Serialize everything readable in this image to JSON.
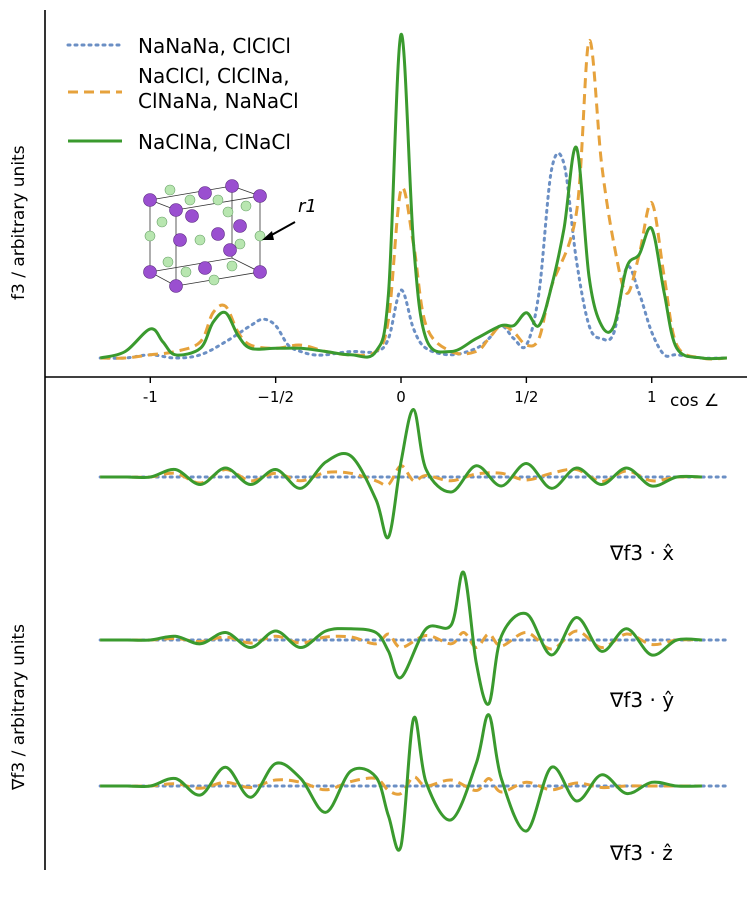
{
  "chart_data": [
    {
      "type": "line",
      "title": "",
      "ylabel": "f3 / arbitrary units",
      "xlabel": "cos ∠",
      "xlim": [
        -1.42,
        1.38
      ],
      "ylim": [
        -0.05,
        1.02
      ],
      "xticks": [
        {
          "value": -1,
          "label": "-1"
        },
        {
          "value": -0.5,
          "label": "−1/2"
        },
        {
          "value": 0,
          "label": "0"
        },
        {
          "value": 0.5,
          "label": "1/2"
        },
        {
          "value": 1,
          "label": "1"
        }
      ],
      "legend": {
        "placement": "top-left",
        "entries": [
          {
            "label": "NaNaNa, ClClCl",
            "series": 0
          },
          {
            "label": "NaClCl, ClClNa,",
            "label2": "ClNaNa, NaNaCl",
            "series": 1
          },
          {
            "label": "NaClNa, ClNaCl",
            "series": 2
          }
        ]
      },
      "annotation": "r1",
      "series": [
        {
          "name": "NaNaNa, ClClCl",
          "color": "#6b8fc4",
          "dash": "dotted",
          "x": [
            -1.2,
            -1.1,
            -1.0,
            -0.9,
            -0.8,
            -0.7,
            -0.6,
            -0.55,
            -0.5,
            -0.45,
            -0.4,
            -0.35,
            -0.3,
            -0.2,
            -0.1,
            -0.05,
            0.0,
            0.05,
            0.1,
            0.2,
            0.3,
            0.35,
            0.4,
            0.45,
            0.5,
            0.55,
            0.6,
            0.65,
            0.7,
            0.75,
            0.8,
            0.85,
            0.9,
            0.95,
            1.0,
            1.05,
            1.1,
            1.2,
            1.3
          ],
          "y": [
            0.0,
            0.0,
            0.01,
            0.0,
            0.01,
            0.05,
            0.1,
            0.12,
            0.1,
            0.04,
            0.02,
            0.01,
            0.01,
            0.02,
            0.02,
            0.06,
            0.21,
            0.09,
            0.03,
            0.01,
            0.03,
            0.06,
            0.1,
            0.06,
            0.04,
            0.2,
            0.58,
            0.6,
            0.3,
            0.1,
            0.06,
            0.08,
            0.28,
            0.2,
            0.08,
            0.01,
            0.01,
            0.0,
            0.0
          ]
        },
        {
          "name": "NaClCl, ClClNa, ClNaNa, NaNaCl",
          "color": "#e6a23c",
          "dash": "dashed",
          "x": [
            -1.2,
            -1.1,
            -1.0,
            -0.9,
            -0.8,
            -0.75,
            -0.7,
            -0.65,
            -0.6,
            -0.5,
            -0.4,
            -0.3,
            -0.2,
            -0.1,
            -0.05,
            0.0,
            0.05,
            0.1,
            0.2,
            0.3,
            0.35,
            0.4,
            0.45,
            0.5,
            0.55,
            0.6,
            0.7,
            0.75,
            0.8,
            0.85,
            0.9,
            0.95,
            1.0,
            1.05,
            1.1,
            1.2,
            1.3
          ],
          "y": [
            0.0,
            0.0,
            0.01,
            0.02,
            0.05,
            0.14,
            0.16,
            0.08,
            0.04,
            0.03,
            0.04,
            0.02,
            0.01,
            0.02,
            0.12,
            0.52,
            0.35,
            0.1,
            0.02,
            0.02,
            0.06,
            0.1,
            0.08,
            0.04,
            0.06,
            0.22,
            0.45,
            0.98,
            0.6,
            0.35,
            0.2,
            0.32,
            0.48,
            0.25,
            0.04,
            0.0,
            0.0
          ]
        },
        {
          "name": "NaClNa, ClNaCl",
          "color": "#3a9a2e",
          "dash": "solid",
          "x": [
            -1.2,
            -1.1,
            -1.0,
            -0.95,
            -0.9,
            -0.8,
            -0.75,
            -0.7,
            -0.65,
            -0.6,
            -0.5,
            -0.4,
            -0.3,
            -0.2,
            -0.1,
            -0.05,
            0.0,
            0.05,
            0.1,
            0.2,
            0.3,
            0.4,
            0.45,
            0.5,
            0.55,
            0.6,
            0.65,
            0.7,
            0.75,
            0.8,
            0.85,
            0.9,
            0.95,
            1.0,
            1.05,
            1.1,
            1.2,
            1.3
          ],
          "y": [
            0.0,
            0.02,
            0.09,
            0.05,
            0.01,
            0.03,
            0.11,
            0.14,
            0.07,
            0.03,
            0.03,
            0.03,
            0.02,
            0.01,
            0.02,
            0.2,
            1.0,
            0.35,
            0.06,
            0.02,
            0.06,
            0.1,
            0.1,
            0.14,
            0.1,
            0.22,
            0.4,
            0.65,
            0.25,
            0.1,
            0.1,
            0.28,
            0.32,
            0.4,
            0.2,
            0.03,
            0.0,
            0.0
          ]
        }
      ]
    },
    {
      "type": "line",
      "ylabel": "∇f3 / arbitrary units",
      "panel_labels": [
        "∇f3 · x̂",
        "∇f3 · ŷ",
        "∇f3 · ẑ"
      ],
      "note": "Three gradient traces (x̂, ŷ, ẑ) sharing the cos ∠ axis; dotted NaNaNa series flat at baseline.",
      "series_styles": [
        {
          "name": "NaNaNa, ClClCl",
          "color": "#6b8fc4",
          "dash": "dotted"
        },
        {
          "name": "NaClCl, ClClNa, ClNaNa, NaNaCl",
          "color": "#e6a23c",
          "dash": "dashed"
        },
        {
          "name": "NaClNa, ClNaCl",
          "color": "#3a9a2e",
          "dash": "solid"
        }
      ],
      "panels": [
        {
          "label": "∇f3 · x̂",
          "x": [
            -1.2,
            -1.1,
            -1.0,
            -0.9,
            -0.8,
            -0.7,
            -0.6,
            -0.5,
            -0.4,
            -0.3,
            -0.2,
            -0.1,
            -0.05,
            0.0,
            0.05,
            0.1,
            0.2,
            0.3,
            0.4,
            0.5,
            0.6,
            0.7,
            0.8,
            0.9,
            1.0,
            1.1,
            1.2
          ],
          "dashed": [
            0.0,
            0.0,
            0.0,
            0.05,
            -0.08,
            0.1,
            -0.05,
            0.05,
            -0.05,
            0.06,
            0.05,
            -0.05,
            -0.1,
            0.15,
            -0.05,
            0.02,
            -0.05,
            0.04,
            0.05,
            -0.04,
            0.05,
            0.1,
            -0.06,
            0.08,
            -0.05,
            0.0,
            0.0
          ],
          "solid": [
            0.0,
            0.0,
            0.0,
            0.1,
            -0.1,
            0.12,
            -0.1,
            0.1,
            -0.15,
            0.2,
            0.28,
            -0.3,
            -0.8,
            0.2,
            0.9,
            0.1,
            -0.2,
            0.15,
            -0.12,
            0.18,
            -0.15,
            0.12,
            -0.1,
            0.12,
            -0.12,
            0.0,
            0.0
          ]
        },
        {
          "label": "∇f3 · ŷ",
          "x": [
            -1.2,
            -1.1,
            -1.0,
            -0.9,
            -0.8,
            -0.7,
            -0.6,
            -0.5,
            -0.4,
            -0.3,
            -0.2,
            -0.1,
            -0.05,
            0.0,
            0.1,
            0.2,
            0.25,
            0.3,
            0.35,
            0.4,
            0.5,
            0.6,
            0.7,
            0.8,
            0.9,
            1.0,
            1.1,
            1.2
          ],
          "dashed": [
            0.0,
            0.0,
            0.0,
            0.02,
            -0.02,
            0.04,
            -0.04,
            0.05,
            -0.04,
            0.04,
            0.04,
            -0.05,
            0.08,
            -0.1,
            0.06,
            -0.05,
            0.1,
            -0.1,
            0.08,
            -0.08,
            0.1,
            -0.12,
            0.12,
            -0.1,
            0.08,
            -0.06,
            0.0,
            0.0
          ],
          "solid": [
            0.0,
            0.0,
            0.0,
            0.05,
            -0.05,
            0.1,
            -0.1,
            0.12,
            -0.1,
            0.12,
            0.15,
            0.1,
            -0.15,
            -0.5,
            0.15,
            0.2,
            0.9,
            -0.3,
            -0.85,
            0.05,
            0.35,
            -0.2,
            0.3,
            -0.15,
            0.15,
            -0.2,
            0.0,
            0.0
          ]
        },
        {
          "label": "∇f3 · ẑ",
          "x": [
            -1.2,
            -1.1,
            -1.0,
            -0.9,
            -0.8,
            -0.7,
            -0.6,
            -0.5,
            -0.4,
            -0.3,
            -0.2,
            -0.1,
            -0.05,
            0.0,
            0.05,
            0.1,
            0.2,
            0.3,
            0.35,
            0.4,
            0.5,
            0.6,
            0.7,
            0.8,
            0.9,
            1.0,
            1.1,
            1.2
          ],
          "dashed": [
            0.0,
            0.0,
            0.0,
            0.03,
            -0.03,
            0.05,
            -0.02,
            0.08,
            0.05,
            -0.05,
            0.06,
            0.1,
            -0.06,
            -0.1,
            0.12,
            0.0,
            0.08,
            -0.06,
            0.1,
            -0.08,
            0.05,
            -0.05,
            0.04,
            -0.02,
            0.0,
            0.0,
            0.0,
            0.0
          ],
          "solid": [
            0.0,
            0.0,
            0.0,
            0.1,
            -0.12,
            0.25,
            -0.15,
            0.3,
            0.1,
            -0.35,
            0.2,
            0.12,
            -0.4,
            -0.8,
            0.9,
            0.05,
            -0.45,
            0.3,
            0.95,
            0.1,
            -0.6,
            0.25,
            -0.2,
            0.15,
            -0.1,
            0.05,
            0.0,
            0.0
          ]
        }
      ]
    }
  ]
}
